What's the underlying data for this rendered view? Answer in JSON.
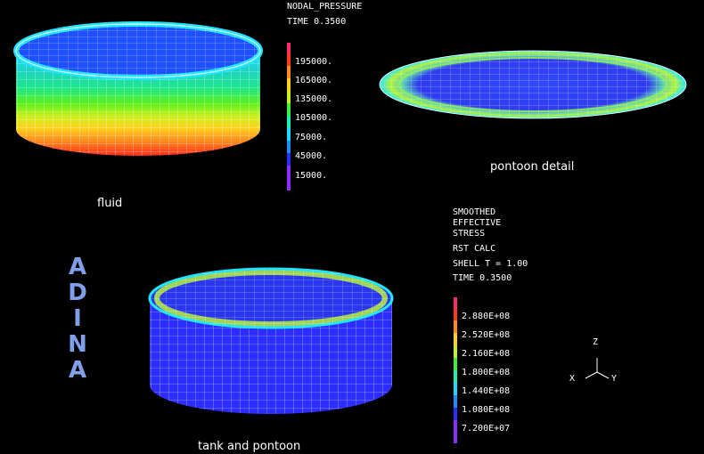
{
  "pressure_legend": {
    "title": "NODAL_PRESSURE",
    "time": "TIME 0.3500",
    "ticks": [
      "195000.",
      "165000.",
      "135000.",
      "105000.",
      "75000.",
      "45000.",
      "15000."
    ]
  },
  "stress_legend": {
    "title_lines": [
      "SMOOTHED",
      "EFFECTIVE",
      "STRESS"
    ],
    "calc": "RST CALC",
    "shell": "SHELL T = 1.00",
    "time": "TIME 0.3500",
    "ticks": [
      "2.880E+08",
      "2.520E+08",
      "2.160E+08",
      "1.800E+08",
      "1.440E+08",
      "1.080E+08",
      "7.200E+07"
    ]
  },
  "captions": {
    "fluid": "fluid",
    "pontoon": "pontoon detail",
    "tank": "tank and pontoon"
  },
  "logo": [
    "A",
    "D",
    "I",
    "N",
    "A"
  ],
  "axes": {
    "z": "Z",
    "x": "X",
    "y": "Y"
  },
  "colors": {
    "scale": [
      "#ff2a6a",
      "#ff3b1e",
      "#ff8a1e",
      "#ffd11e",
      "#c8f01e",
      "#3cf03c",
      "#1ef0b4",
      "#1ed8ff",
      "#1e8cff",
      "#2d2dff",
      "#8a2dff"
    ],
    "background": "#000000",
    "mesh": "#ffffff",
    "logo": "#7f9fe8"
  }
}
